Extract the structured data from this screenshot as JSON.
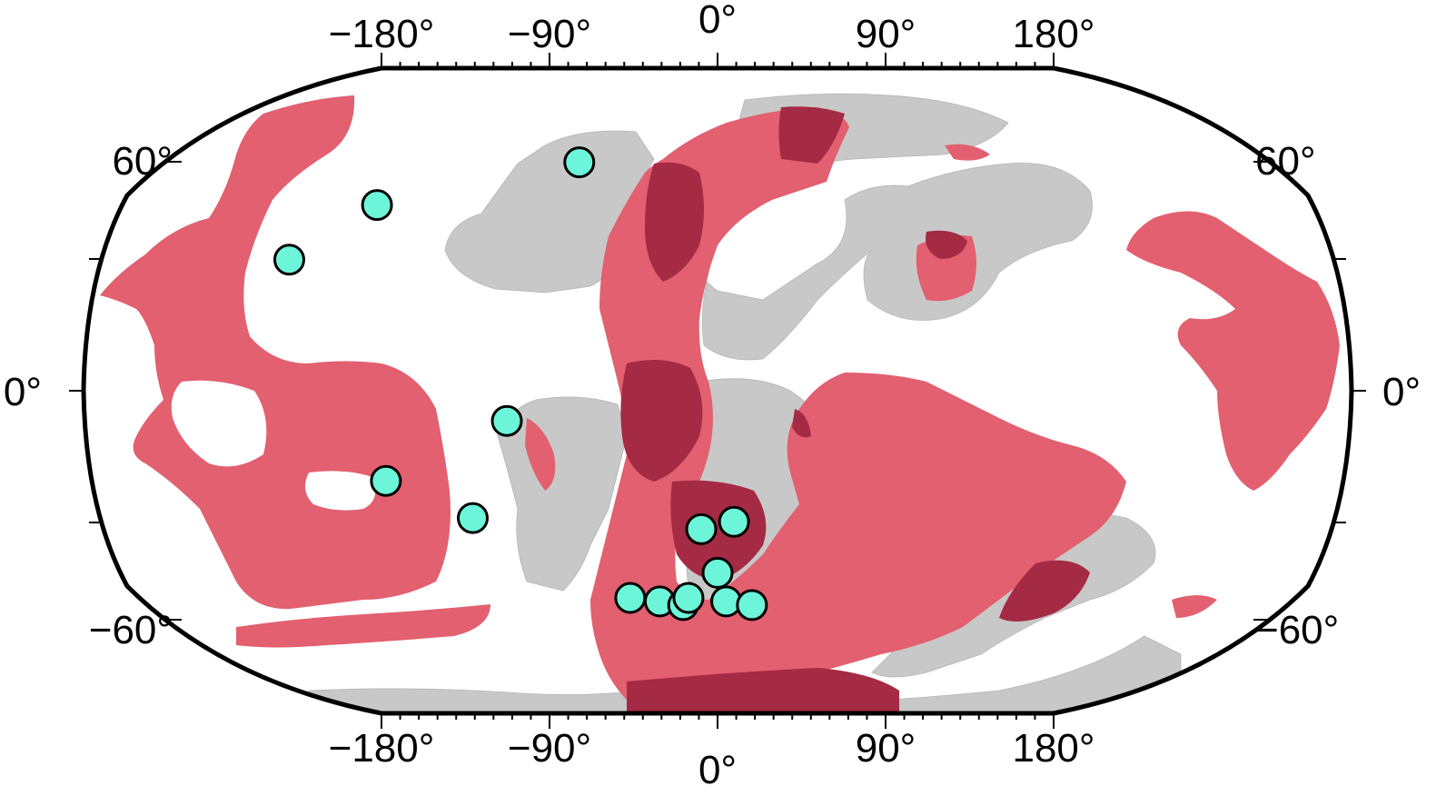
{
  "axes": {
    "top_labels": [
      "−180°",
      "−90°",
      "0°",
      "90°",
      "180°"
    ],
    "bottom_labels": [
      "−180°",
      "−90°",
      "0°",
      "90°",
      "180°"
    ],
    "left_labels": [
      "60°",
      "0°",
      "−60°"
    ],
    "right_labels": [
      "60°",
      "0°",
      "−60°"
    ]
  },
  "colors": {
    "background": "#ffffff",
    "paleo_landmass": "#c8c8c8",
    "highlight_region": "#e2606f",
    "highlight_overlap": "#a52a44",
    "sites": "#6cf5d9",
    "site_outline": "#000000"
  },
  "sites": [
    {
      "lon": -50,
      "lat": 62
    },
    {
      "lon": -112,
      "lat": 50
    },
    {
      "lon": -130,
      "lat": 35
    },
    {
      "lon": -60,
      "lat": -8
    },
    {
      "lon": -97,
      "lat": -24
    },
    {
      "lon": -74,
      "lat": -34
    },
    {
      "lon": 5,
      "lat": -35
    },
    {
      "lon": -5,
      "lat": -37
    },
    {
      "lon": 0,
      "lat": -49
    },
    {
      "lon": -30,
      "lat": -56
    },
    {
      "lon": -20,
      "lat": -57
    },
    {
      "lon": -12,
      "lat": -58
    },
    {
      "lon": 3,
      "lat": -57
    },
    {
      "lon": 12,
      "lat": -58
    },
    {
      "lon": -10,
      "lat": -56
    }
  ]
}
